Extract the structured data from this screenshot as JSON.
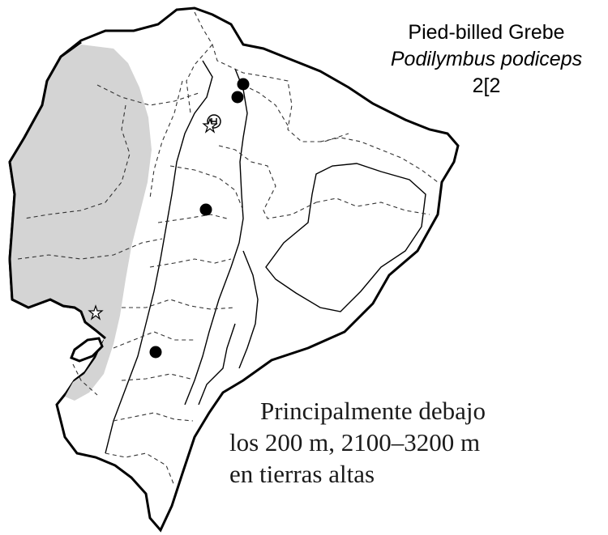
{
  "species": {
    "common_name": "Pied-billed Grebe",
    "scientific_name": "Podilymbus podiceps",
    "code": "2[2"
  },
  "caption": {
    "line1": "Principalmente debajo",
    "line2": "los 200 m, 2100–3200 m",
    "line3": "en tierras altas"
  },
  "legend_symbols": {
    "record": "filled-circle",
    "sight_record": "star",
    "specimen": "circled-letter"
  },
  "colors": {
    "range_fill": "#d4d4d4",
    "outline": "#000000",
    "marker": "#000000"
  }
}
